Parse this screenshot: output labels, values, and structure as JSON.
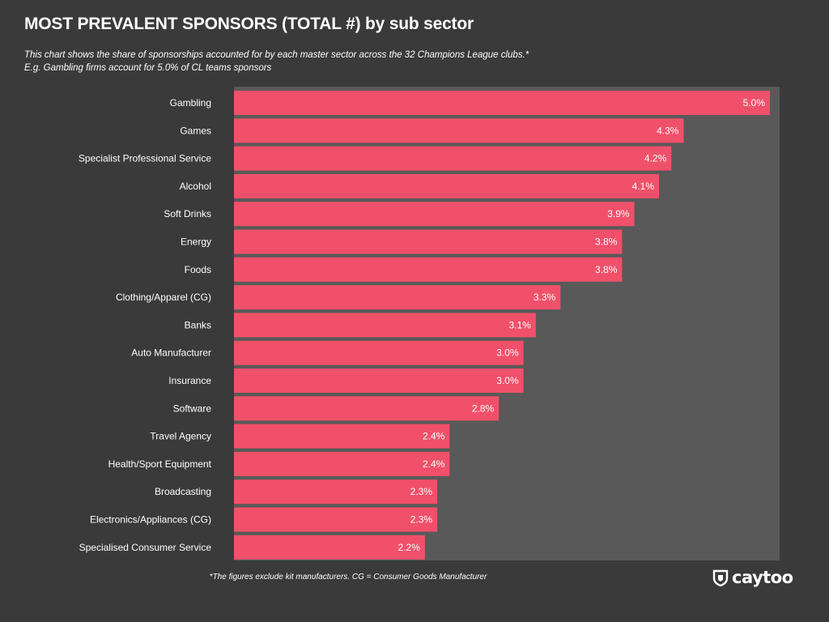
{
  "title": "MOST PREVALENT SPONSORS (TOTAL #) by sub sector",
  "subtitle_lines": [
    "This chart shows the share of sponsorships accounted for by each master sector across the 32 Champions League clubs.*",
    "E.g. Gambling firms account for 5.0% of CL teams sponsors"
  ],
  "footnote": "*The figures exclude kit manufacturers. CG = Consumer Goods Manufacturer",
  "logo": {
    "text": "caytoo",
    "icon": "caytoo-shield-icon"
  },
  "colors": {
    "background": "#3a3a3a",
    "plot_background": "#595959",
    "bar": "#f0506a",
    "text": "#ffffff"
  },
  "chart_data": {
    "type": "bar",
    "orientation": "horizontal",
    "categories": [
      "Gambling",
      "Games",
      "Specialist Professional Service",
      "Alcohol",
      "Soft Drinks",
      "Energy",
      "Foods",
      "Clothing/Apparel (CG)",
      "Banks",
      "Auto Manufacturer",
      "Insurance",
      "Software",
      "Travel Agency",
      "Health/Sport Equipment",
      "Broadcasting",
      "Electronics/Appliances (CG)",
      "Specialised Consumer Service"
    ],
    "values": [
      5.0,
      4.3,
      4.2,
      4.1,
      3.9,
      3.8,
      3.8,
      3.3,
      3.1,
      3.0,
      3.0,
      2.8,
      2.4,
      2.4,
      2.3,
      2.3,
      2.2
    ],
    "value_labels": [
      "5.0%",
      "4.3%",
      "4.2%",
      "4.1%",
      "3.9%",
      "3.8%",
      "3.8%",
      "3.3%",
      "3.1%",
      "3.0%",
      "3.0%",
      "2.8%",
      "2.4%",
      "2.4%",
      "2.3%",
      "2.3%",
      "2.2%"
    ],
    "xlim": [
      0.65,
      5.0
    ],
    "grid": false,
    "legend": "none"
  }
}
